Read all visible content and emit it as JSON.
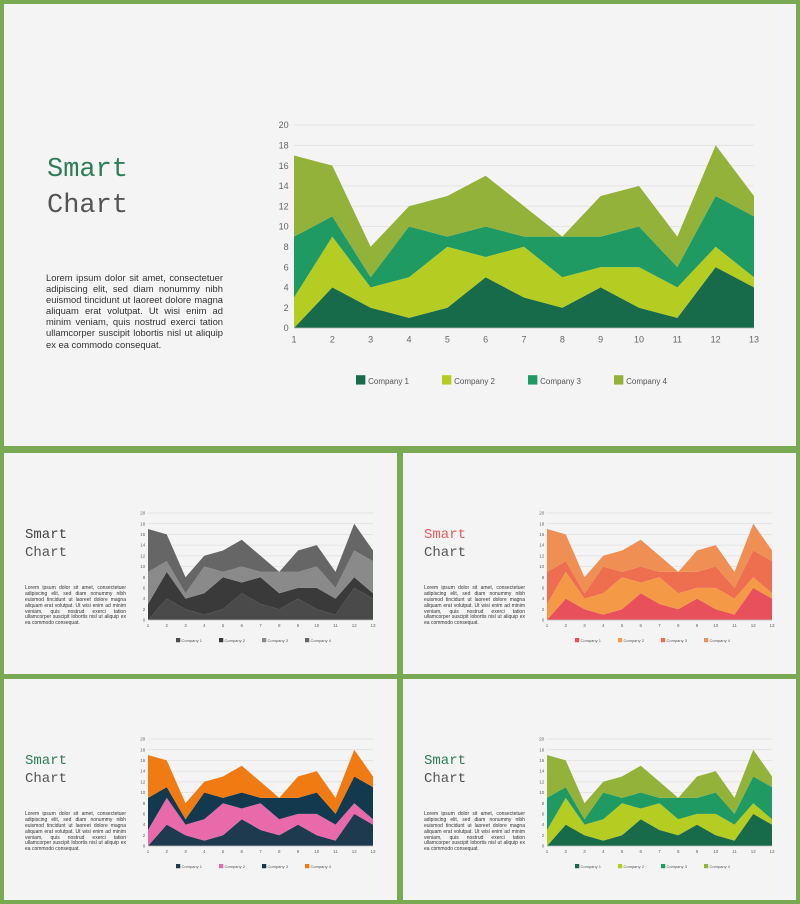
{
  "slide_title_line1": "Smart",
  "slide_title_line2": "Chart",
  "body_text": "Lorem ipsum dolor sit amet, consectetuer adipiscing elit, sed diam nonummy nibh euismod tincidunt ut laoreet dolore magna aliquam erat volutpat. Ut wisi enim ad minim veniam, quis nostrud exerci tation ullamcorper suscipit lobortis nisl ut aliquip ex ea commodo consequat.",
  "chart_data": {
    "type": "area",
    "stacked": true,
    "x": [
      "1",
      "2",
      "3",
      "4",
      "5",
      "6",
      "7",
      "8",
      "9",
      "10",
      "11",
      "12",
      "13"
    ],
    "ylim": [
      0,
      20
    ],
    "yticks": [
      "0",
      "2",
      "4",
      "6",
      "8",
      "10",
      "12",
      "14",
      "16",
      "18",
      "20"
    ],
    "grid": true,
    "legend_position": "bottom",
    "series": [
      {
        "name": "Company 1",
        "values": [
          0,
          4,
          2,
          1,
          2,
          5,
          3,
          2,
          4,
          2,
          1,
          6,
          4
        ]
      },
      {
        "name": "Company 2",
        "values": [
          3,
          5,
          2,
          4,
          6,
          2,
          5,
          3,
          2,
          4,
          3,
          2,
          1
        ]
      },
      {
        "name": "Company 3",
        "values": [
          6,
          2,
          1,
          5,
          1,
          3,
          1,
          4,
          3,
          4,
          2,
          5,
          6
        ]
      },
      {
        "name": "Company 4",
        "values": [
          8,
          5,
          3,
          2,
          4,
          5,
          3,
          0,
          4,
          4,
          3,
          5,
          2
        ]
      }
    ]
  },
  "variants": [
    {
      "id": "main",
      "title_color": "#2e7d58",
      "colors": [
        "#176b4a",
        "#b5cc22",
        "#1f9a62",
        "#93b23a"
      ]
    },
    {
      "id": "gray",
      "title_color": "#444444",
      "colors": [
        "#4a4a4a",
        "#3a3a3a",
        "#8a8a8a",
        "#666666"
      ]
    },
    {
      "id": "warm",
      "title_color": "#e65d5d",
      "colors": [
        "#e8505b",
        "#f49a47",
        "#ee6f50",
        "#ef8f54"
      ]
    },
    {
      "id": "dark",
      "title_color": "#2e7d58",
      "colors": [
        "#1e3a4f",
        "#e86aaa",
        "#12394e",
        "#f07b12"
      ]
    },
    {
      "id": "green",
      "title_color": "#2e7d58",
      "colors": [
        "#176b4a",
        "#b5cc22",
        "#1f9a62",
        "#93b23a"
      ]
    }
  ]
}
